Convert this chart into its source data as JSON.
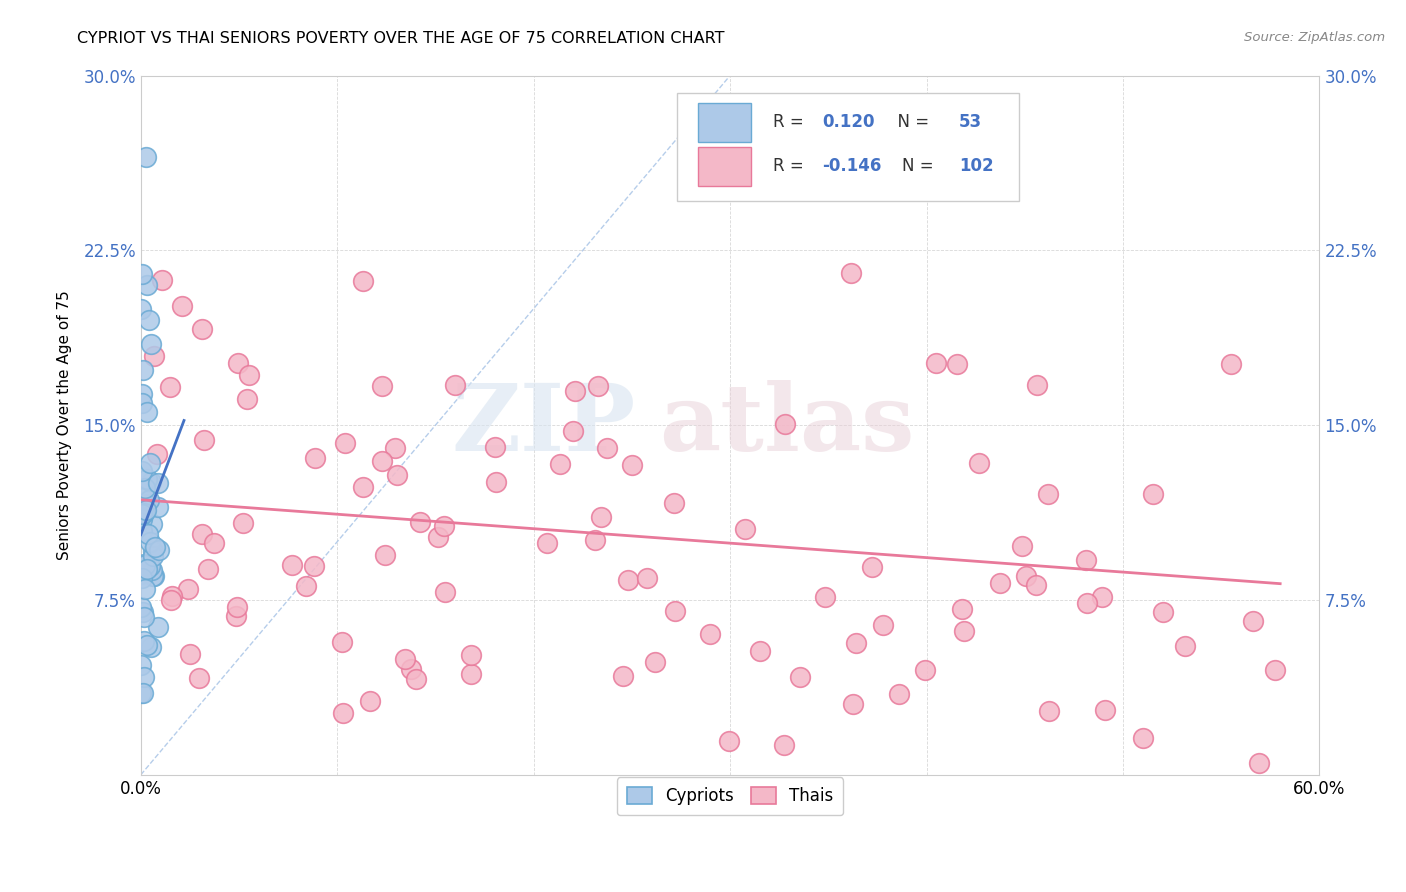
{
  "title": "CYPRIOT VS THAI SENIORS POVERTY OVER THE AGE OF 75 CORRELATION CHART",
  "source": "Source: ZipAtlas.com",
  "ylabel": "Seniors Poverty Over the Age of 75",
  "x_min": 0.0,
  "x_max": 0.6,
  "y_min": 0.0,
  "y_max": 0.3,
  "x_ticks": [
    0.0,
    0.1,
    0.2,
    0.3,
    0.4,
    0.5,
    0.6
  ],
  "x_tick_labels_bottom": [
    "0.0%",
    "",
    "",
    "",
    "",
    "",
    "60.0%"
  ],
  "y_ticks": [
    0.0,
    0.075,
    0.15,
    0.225,
    0.3
  ],
  "y_tick_labels": [
    "",
    "7.5%",
    "15.0%",
    "22.5%",
    "30.0%"
  ],
  "cypriot_color": "#adc9e8",
  "cypriot_edge_color": "#6aaad4",
  "thai_color": "#f4b8c8",
  "thai_edge_color": "#e8799a",
  "cypriot_line_color": "#4472c4",
  "thai_line_color": "#e8799a",
  "diagonal_color": "#aec8e8",
  "R_cypriot": 0.12,
  "N_cypriot": 53,
  "R_thai": -0.146,
  "N_thai": 102,
  "legend_cypriot_label": "Cypriots",
  "legend_thai_label": "Thais",
  "watermark_zip": "ZIP",
  "watermark_atlas": "atlas",
  "cypriot_trend_x0": 0.0,
  "cypriot_trend_y0": 0.103,
  "cypriot_trend_x1": 0.022,
  "cypriot_trend_y1": 0.152,
  "thai_trend_x0": 0.0,
  "thai_trend_y0": 0.118,
  "thai_trend_x1": 0.58,
  "thai_trend_y1": 0.082
}
